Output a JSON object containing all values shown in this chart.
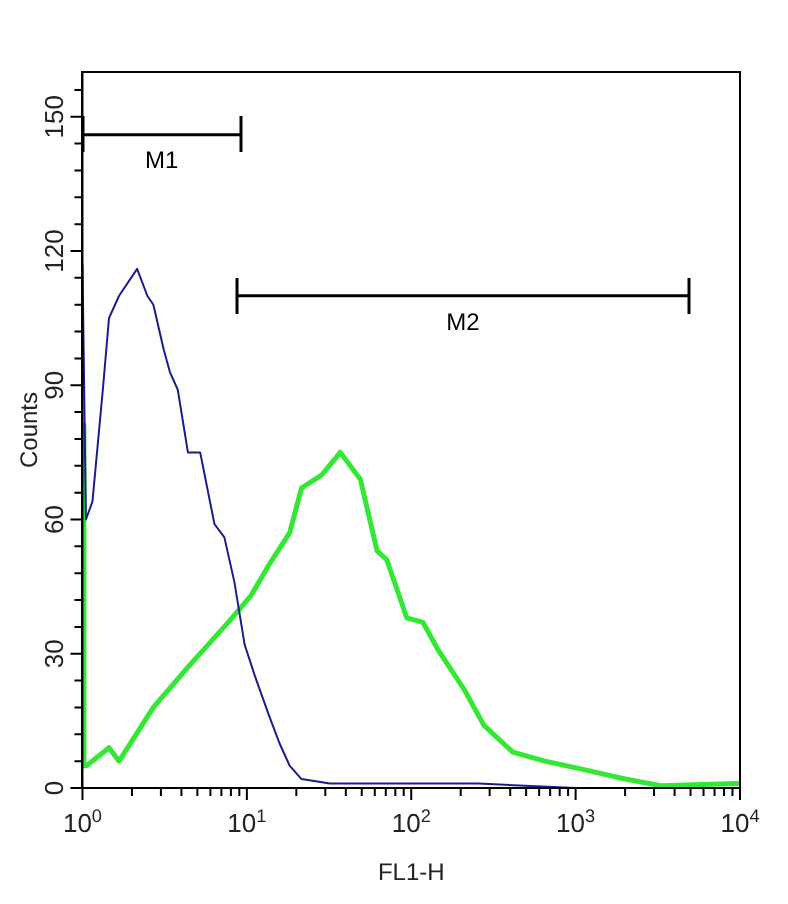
{
  "chart_data": {
    "type": "line",
    "xlabel": "FL1-H",
    "ylabel": "Counts",
    "log": "x",
    "xlim": [
      1,
      10000
    ],
    "xticks": [
      {
        "value": 1,
        "label": "10$^{0}$"
      },
      {
        "value": 2,
        "label": null
      },
      {
        "value": 3,
        "label": null
      },
      {
        "value": 4,
        "label": null
      },
      {
        "value": 5,
        "label": null
      },
      {
        "value": 6,
        "label": null
      },
      {
        "value": 7,
        "label": null
      },
      {
        "value": 8,
        "label": null
      },
      {
        "value": 9,
        "label": null
      },
      {
        "value": 10,
        "label": "10$^{1}$"
      },
      {
        "value": 20,
        "label": null
      },
      {
        "value": 30,
        "label": null
      },
      {
        "value": 40,
        "label": null
      },
      {
        "value": 50,
        "label": null
      },
      {
        "value": 60,
        "label": null
      },
      {
        "value": 70,
        "label": null
      },
      {
        "value": 80,
        "label": null
      },
      {
        "value": 90,
        "label": null
      },
      {
        "value": 100,
        "label": "10$^{2}$"
      },
      {
        "value": 200,
        "label": null
      },
      {
        "value": 300,
        "label": null
      },
      {
        "value": 400,
        "label": null
      },
      {
        "value": 500,
        "label": null
      },
      {
        "value": 600,
        "label": null
      },
      {
        "value": 700,
        "label": null
      },
      {
        "value": 800,
        "label": null
      },
      {
        "value": 900,
        "label": null
      },
      {
        "value": 1000,
        "label": "10$^{3}$"
      },
      {
        "value": 2000,
        "label": null
      },
      {
        "value": 3000,
        "label": null
      },
      {
        "value": 4000,
        "label": null
      },
      {
        "value": 5000,
        "label": null
      },
      {
        "value": 6000,
        "label": null
      },
      {
        "value": 7000,
        "label": null
      },
      {
        "value": 8000,
        "label": null
      },
      {
        "value": 9000,
        "label": null
      },
      {
        "value": 10000,
        "label": "10$^{4}$"
      }
    ],
    "ylim": [
      0,
      160
    ],
    "yticks": [
      0,
      {
        "value": 6,
        "label": null
      },
      {
        "value": 12,
        "label": null
      },
      {
        "value": 18,
        "label": null
      },
      {
        "value": 24,
        "label": null
      },
      30,
      {
        "value": 36,
        "label": null
      },
      {
        "value": 42,
        "label": null
      },
      {
        "value": 48,
        "label": null
      },
      {
        "value": 54,
        "label": null
      },
      60,
      {
        "value": 66,
        "label": null
      },
      {
        "value": 72,
        "label": null
      },
      {
        "value": 78,
        "label": null
      },
      {
        "value": 84,
        "label": null
      },
      90,
      {
        "value": 96,
        "label": null
      },
      {
        "value": 102,
        "label": null
      },
      {
        "value": 108,
        "label": null
      },
      {
        "value": 114,
        "label": null
      },
      120,
      {
        "value": 126,
        "label": null
      },
      {
        "value": 132,
        "label": null
      },
      {
        "value": 138,
        "label": null
      },
      {
        "value": 144,
        "label": null
      },
      150,
      {
        "value": 156,
        "label": null
      }
    ],
    "grid": false,
    "legend": false,
    "marker": "none",
    "line_style": "solid",
    "series": [
      {
        "color": "#1c1c8c",
        "x": [
          1,
          1.05,
          1.15,
          1.33,
          1.45,
          1.67,
          2.15,
          2.48,
          2.7,
          3.12,
          3.4,
          3.8,
          4.38,
          5.2,
          6.35,
          7.3,
          8.4,
          9.7,
          11.2,
          13.7,
          15.8,
          18.2,
          21.5,
          32,
          82,
          257,
          1000
        ],
        "values": [
          117,
          60,
          64,
          89,
          105,
          110,
          116,
          110,
          108,
          98,
          93,
          89,
          75,
          75,
          59,
          56,
          46,
          32,
          25,
          16,
          10,
          5,
          2,
          1,
          1,
          1,
          0
        ]
      },
      {
        "color": "#33e833",
        "x": [
          1,
          1.02,
          1.06,
          1.45,
          1.67,
          2.7,
          4.38,
          5.8,
          7.7,
          10.6,
          13.7,
          18.2,
          21.5,
          28.6,
          37,
          49,
          62,
          71,
          94,
          118,
          145,
          210,
          277,
          415,
          650,
          1160,
          2000,
          3300,
          9500,
          10000
        ],
        "values": [
          81,
          5,
          5,
          9,
          6,
          18,
          27,
          32,
          37,
          43,
          50,
          57,
          67,
          70,
          75,
          69,
          53,
          51,
          38,
          37,
          31,
          22,
          14,
          8,
          6,
          4,
          2,
          0.5,
          1,
          1
        ]
      },
      {
        "name": "M1",
        "color": "#000000",
        "x": [
          1,
          9.2
        ],
        "values": [
          146,
          146
        ]
      },
      {
        "name": "M2",
        "color": "#000000",
        "x": [
          8.7,
          4900
        ],
        "values": [
          110,
          110
        ]
      }
    ]
  }
}
